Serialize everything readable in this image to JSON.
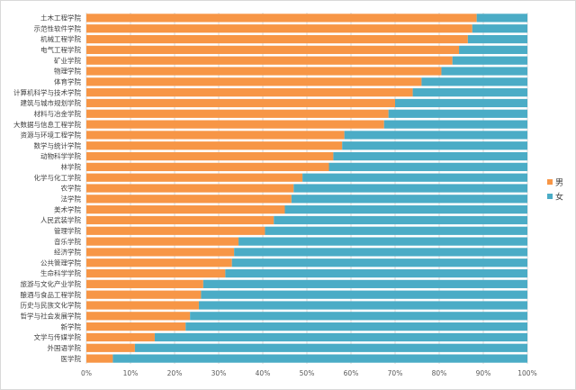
{
  "chart_data": {
    "type": "bar",
    "orientation": "horizontal",
    "stacked": "percent",
    "title": "",
    "xlabel": "",
    "ylabel": "",
    "xlim": [
      0,
      100
    ],
    "xticks": [
      "0%",
      "10%",
      "20%",
      "30%",
      "40%",
      "50%",
      "60%",
      "70%",
      "80%",
      "90%",
      "100%"
    ],
    "grid": true,
    "legend_position": "right",
    "colors": {
      "男": "#F79646",
      "女": "#4BACC6"
    },
    "categories": [
      "土木工程学院",
      "示范性软件学院",
      "机械工程学院",
      "电气工程学院",
      "矿业学院",
      "物理学院",
      "体育学院",
      "计算机科学与技术学院",
      "建筑与城市规划学院",
      "材料与冶金学院",
      "大数据与信息工程学院",
      "资源与环境工程学院",
      "数学与统计学院",
      "动物科学学院",
      "林学院",
      "化学与化工学院",
      "农学院",
      "法学院",
      "美术学院",
      "人民武装学院",
      "管理学院",
      "音乐学院",
      "经济学院",
      "公共管理学院",
      "生命科学学院",
      "旅游与文化产业学院",
      "酿酒与食品工程学院",
      "历史与民族文化学院",
      "哲学与社会发展学院",
      "新学院",
      "文学与传媒学院",
      "外国语学院",
      "医学院"
    ],
    "series": [
      {
        "name": "男",
        "values": [
          88.5,
          87.5,
          86.5,
          84.5,
          83.0,
          80.5,
          76.0,
          74.0,
          70.0,
          68.5,
          67.5,
          58.5,
          58.0,
          56.0,
          55.0,
          49.0,
          47.0,
          46.5,
          45.0,
          42.5,
          40.5,
          34.5,
          33.5,
          33.0,
          31.5,
          26.5,
          26.0,
          25.5,
          23.5,
          22.5,
          15.5,
          11.0,
          6.0
        ]
      },
      {
        "name": "女",
        "values": [
          11.5,
          12.5,
          13.5,
          15.5,
          17.0,
          19.5,
          24.0,
          26.0,
          30.0,
          31.5,
          32.5,
          41.5,
          42.0,
          44.0,
          45.0,
          51.0,
          53.0,
          53.5,
          55.0,
          57.5,
          59.5,
          65.5,
          66.5,
          67.0,
          68.5,
          73.5,
          74.0,
          74.5,
          76.5,
          77.5,
          84.5,
          89.0,
          94.0
        ]
      }
    ]
  }
}
